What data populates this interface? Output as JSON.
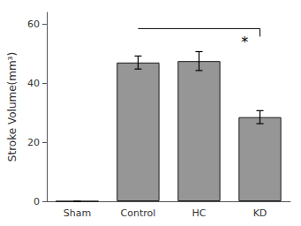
{
  "chart_data": {
    "type": "bar",
    "categories": [
      "Sham",
      "Control",
      "HC",
      "KD"
    ],
    "values": [
      0.0,
      47.0,
      47.5,
      28.5
    ],
    "errors": [
      0.0,
      2.2,
      3.2,
      2.2
    ],
    "color": "#969696",
    "ylabel": "Stroke Volume(mm³)",
    "ylim": [
      0,
      64
    ],
    "yticks": [
      0,
      20,
      40,
      60
    ],
    "grid": false,
    "annotations": [
      {
        "text": "*",
        "x1": "Control",
        "x2": "KD",
        "y": 58.5
      }
    ]
  }
}
